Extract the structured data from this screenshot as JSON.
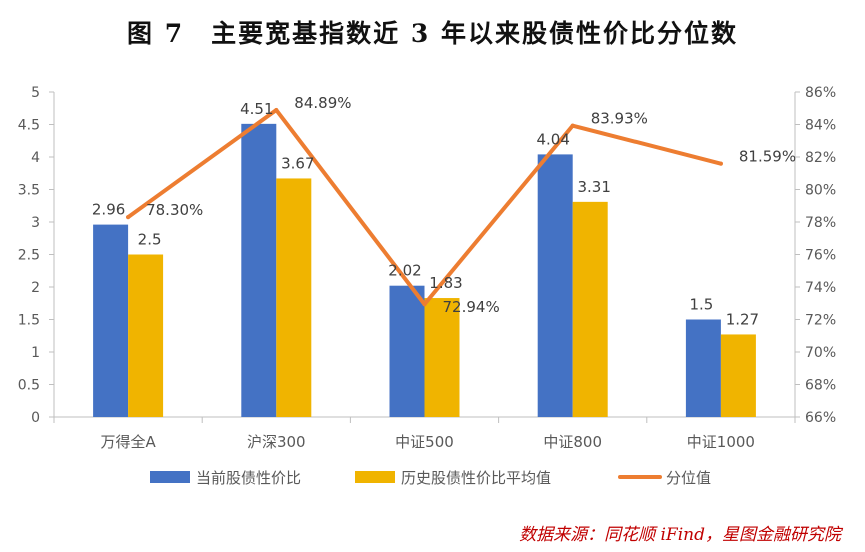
{
  "title": "图 7　主要宽基指数近 3 年以来股债性价比分位数",
  "source": "数据来源：同花顺 iFind，星图金融研究院",
  "chart_data": {
    "type": "bar",
    "categories": [
      "万得全A",
      "沪深300",
      "中证500",
      "中证800",
      "中证1000"
    ],
    "series": [
      {
        "name": "当前股债性价比",
        "type": "bar",
        "axis": "left",
        "color": "#4472C4",
        "values": [
          2.96,
          4.51,
          2.02,
          4.04,
          1.5
        ],
        "labels": [
          "2.96",
          "4.51",
          "2.02",
          "4.04",
          "1.5"
        ]
      },
      {
        "name": "历史股债性价比平均值",
        "type": "bar",
        "axis": "left",
        "color": "#F0B400",
        "values": [
          2.5,
          3.67,
          1.83,
          3.31,
          1.27
        ],
        "labels": [
          "2.5",
          "3.67",
          "1.83",
          "3.31",
          "1.27"
        ]
      },
      {
        "name": "分位值",
        "type": "line",
        "axis": "right",
        "color": "#ED7D31",
        "values": [
          78.3,
          84.89,
          72.94,
          83.93,
          81.59
        ],
        "labels": [
          "78.30%",
          "84.89%",
          "72.94%",
          "83.93%",
          "81.59%"
        ]
      }
    ],
    "y_left": {
      "ylim": [
        0,
        5
      ],
      "ticks": [
        "0",
        "0.5",
        "1",
        "1.5",
        "2",
        "2.5",
        "3",
        "3.5",
        "4",
        "4.5",
        "5"
      ]
    },
    "y_right": {
      "ylim": [
        66,
        86
      ],
      "ticks": [
        "66%",
        "68%",
        "70%",
        "72%",
        "74%",
        "76%",
        "78%",
        "80%",
        "82%",
        "84%",
        "86%"
      ]
    },
    "grid": false,
    "legend": "bottom"
  }
}
